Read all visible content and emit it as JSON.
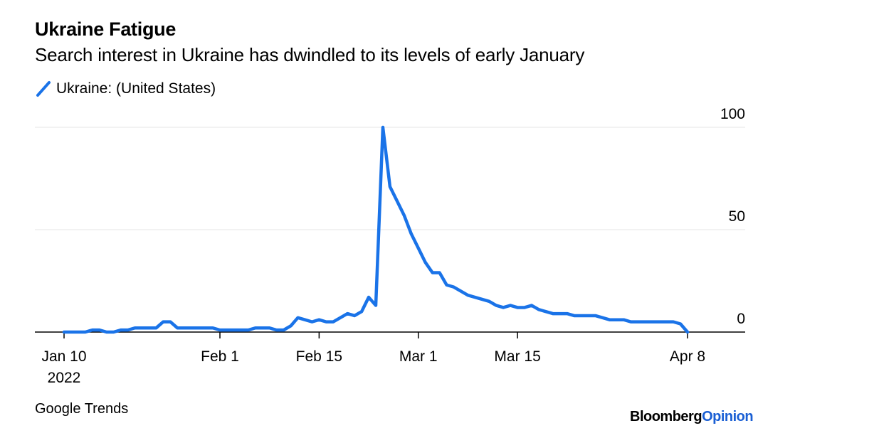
{
  "chart_data": {
    "type": "line",
    "title": "Ukraine Fatigue",
    "subtitle": "Search interest in Ukraine has dwindled to its levels of early January",
    "source": "Google Trends",
    "brand": {
      "part1": "Bloomberg",
      "part2": "Opinion"
    },
    "series": [
      {
        "name": "Ukraine: (United States)",
        "color": "#1a73e8",
        "points": [
          [
            "2022-01-10",
            0
          ],
          [
            "2022-01-11",
            0
          ],
          [
            "2022-01-12",
            0
          ],
          [
            "2022-01-13",
            0
          ],
          [
            "2022-01-14",
            1
          ],
          [
            "2022-01-15",
            1
          ],
          [
            "2022-01-16",
            0
          ],
          [
            "2022-01-17",
            0
          ],
          [
            "2022-01-18",
            1
          ],
          [
            "2022-01-19",
            1
          ],
          [
            "2022-01-20",
            2
          ],
          [
            "2022-01-21",
            2
          ],
          [
            "2022-01-22",
            2
          ],
          [
            "2022-01-23",
            2
          ],
          [
            "2022-01-24",
            5
          ],
          [
            "2022-01-25",
            5
          ],
          [
            "2022-01-26",
            2
          ],
          [
            "2022-01-27",
            2
          ],
          [
            "2022-01-28",
            2
          ],
          [
            "2022-01-29",
            2
          ],
          [
            "2022-01-30",
            2
          ],
          [
            "2022-01-31",
            2
          ],
          [
            "2022-02-01",
            1
          ],
          [
            "2022-02-02",
            1
          ],
          [
            "2022-02-03",
            1
          ],
          [
            "2022-02-04",
            1
          ],
          [
            "2022-02-05",
            1
          ],
          [
            "2022-02-06",
            2
          ],
          [
            "2022-02-07",
            2
          ],
          [
            "2022-02-08",
            2
          ],
          [
            "2022-02-09",
            1
          ],
          [
            "2022-02-10",
            1
          ],
          [
            "2022-02-11",
            3
          ],
          [
            "2022-02-12",
            7
          ],
          [
            "2022-02-13",
            6
          ],
          [
            "2022-02-14",
            5
          ],
          [
            "2022-02-15",
            6
          ],
          [
            "2022-02-16",
            5
          ],
          [
            "2022-02-17",
            5
          ],
          [
            "2022-02-18",
            7
          ],
          [
            "2022-02-19",
            9
          ],
          [
            "2022-02-20",
            8
          ],
          [
            "2022-02-21",
            10
          ],
          [
            "2022-02-22",
            17
          ],
          [
            "2022-02-23",
            13
          ],
          [
            "2022-02-24",
            100
          ],
          [
            "2022-02-25",
            71
          ],
          [
            "2022-02-26",
            64
          ],
          [
            "2022-02-27",
            57
          ],
          [
            "2022-02-28",
            48
          ],
          [
            "2022-03-01",
            41
          ],
          [
            "2022-03-02",
            34
          ],
          [
            "2022-03-03",
            29
          ],
          [
            "2022-03-04",
            29
          ],
          [
            "2022-03-05",
            23
          ],
          [
            "2022-03-06",
            22
          ],
          [
            "2022-03-07",
            20
          ],
          [
            "2022-03-08",
            18
          ],
          [
            "2022-03-09",
            17
          ],
          [
            "2022-03-10",
            16
          ],
          [
            "2022-03-11",
            15
          ],
          [
            "2022-03-12",
            13
          ],
          [
            "2022-03-13",
            12
          ],
          [
            "2022-03-14",
            13
          ],
          [
            "2022-03-15",
            12
          ],
          [
            "2022-03-16",
            12
          ],
          [
            "2022-03-17",
            13
          ],
          [
            "2022-03-18",
            11
          ],
          [
            "2022-03-19",
            10
          ],
          [
            "2022-03-20",
            9
          ],
          [
            "2022-03-21",
            9
          ],
          [
            "2022-03-22",
            9
          ],
          [
            "2022-03-23",
            8
          ],
          [
            "2022-03-24",
            8
          ],
          [
            "2022-03-25",
            8
          ],
          [
            "2022-03-26",
            8
          ],
          [
            "2022-03-27",
            7
          ],
          [
            "2022-03-28",
            6
          ],
          [
            "2022-03-29",
            6
          ],
          [
            "2022-03-30",
            6
          ],
          [
            "2022-03-31",
            5
          ],
          [
            "2022-04-01",
            5
          ],
          [
            "2022-04-02",
            5
          ],
          [
            "2022-04-03",
            5
          ],
          [
            "2022-04-04",
            5
          ],
          [
            "2022-04-05",
            5
          ],
          [
            "2022-04-06",
            5
          ],
          [
            "2022-04-07",
            4
          ],
          [
            "2022-04-08",
            0
          ]
        ]
      }
    ],
    "x_ticks": [
      {
        "date": "2022-01-10",
        "label": "Jan 10",
        "sublabel": "2022"
      },
      {
        "date": "2022-02-01",
        "label": "Feb 1"
      },
      {
        "date": "2022-02-15",
        "label": "Feb 15"
      },
      {
        "date": "2022-03-01",
        "label": "Mar 1"
      },
      {
        "date": "2022-03-15",
        "label": "Mar 15"
      },
      {
        "date": "2022-04-08",
        "label": "Apr 8"
      }
    ],
    "y_ticks": [
      {
        "value": 0,
        "label": "0"
      },
      {
        "value": 50,
        "label": "50"
      },
      {
        "value": 100,
        "label": "100"
      }
    ],
    "xlim": [
      "2022-01-10",
      "2022-04-08"
    ],
    "ylim": [
      0,
      100
    ],
    "grid": true,
    "y_axis_side": "right",
    "legend_position": "top-left"
  }
}
